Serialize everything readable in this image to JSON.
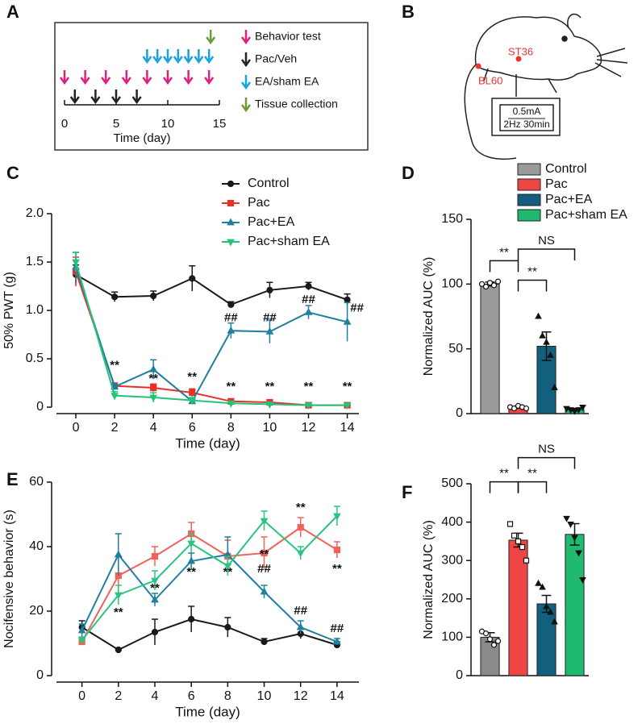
{
  "panel_labels": [
    "A",
    "B",
    "C",
    "D",
    "E",
    "F"
  ],
  "timeline": {
    "xlim": [
      0,
      15
    ],
    "ticks": [
      0,
      5,
      10,
      15
    ],
    "xlabel": "Time (day)",
    "events": [
      {
        "name": "Behavior test",
        "color": "#e0207f",
        "days": [
          0,
          2,
          4,
          6,
          8,
          10,
          12,
          14
        ]
      },
      {
        "name": "Pac/Veh",
        "color": "#222222",
        "days": [
          1,
          3,
          5,
          7
        ]
      },
      {
        "name": "EA/sham EA",
        "color": "#1aa3dd",
        "days": [
          8,
          9,
          10,
          11,
          12,
          13,
          14
        ]
      },
      {
        "name": "Tissue collection",
        "color": "#6f9a3a",
        "days": [
          14
        ]
      }
    ]
  },
  "diagram": {
    "points": [
      "ST36",
      "BL60"
    ],
    "stimulator": [
      "0.5mA",
      "2Hz 30min"
    ]
  },
  "chart_data": [
    {
      "type": "line",
      "ylabel": "50% PWT (g)",
      "xlabel": "Time (day)",
      "x": [
        0,
        2,
        4,
        6,
        8,
        10,
        12,
        14
      ],
      "xlim": [
        -1,
        14.6
      ],
      "xticks": [
        0,
        2,
        4,
        6,
        8,
        10,
        12,
        14
      ],
      "ylim": [
        0,
        2
      ],
      "yticks": [
        0,
        0.5,
        {
          "value": 1,
          "label": "1.0"
        },
        1.5,
        {
          "value": 2,
          "label": "2.0"
        }
      ],
      "series": [
        {
          "name": "Control",
          "color": "#1a1a1a",
          "marker": "circle",
          "values": [
            1.37,
            1.14,
            1.15,
            1.33,
            1.06,
            1.21,
            1.25,
            1.11
          ],
          "errors": [
            0.1,
            0.05,
            0.05,
            0.13,
            0.03,
            0.08,
            0.04,
            0.06
          ]
        },
        {
          "name": "Pac",
          "color": "#e8302a",
          "marker": "square",
          "values": [
            1.4,
            0.22,
            0.2,
            0.15,
            0.06,
            0.05,
            0.02,
            0.02
          ],
          "errors": [
            0.15,
            0.03,
            0.04,
            0.04,
            0.01,
            0.01,
            0.01,
            0.01
          ]
        },
        {
          "name": "Pac+EA",
          "color": "#1f7fa0",
          "marker": "triangle",
          "values": [
            1.45,
            0.21,
            0.39,
            0.06,
            0.79,
            0.78,
            0.98,
            0.88
          ],
          "errors": [
            0.15,
            0.03,
            0.1,
            0.02,
            0.08,
            0.12,
            0.07,
            0.2
          ]
        },
        {
          "name": "Pac+sham EA",
          "color": "#22c47a",
          "marker": "triangle-down",
          "values": [
            1.5,
            0.12,
            0.1,
            0.07,
            0.04,
            0.03,
            0.02,
            0.02
          ],
          "errors": [
            0.1,
            0.04,
            0.05,
            0.03,
            0.01,
            0.01,
            0.01,
            0.01
          ]
        }
      ],
      "annotations": [
        {
          "text": "**",
          "x": 2,
          "y": 0.43
        },
        {
          "text": "**",
          "x": 4,
          "y": 0.29
        },
        {
          "text": "**",
          "x": 6,
          "y": 0.31
        },
        {
          "text": "**",
          "x": 8,
          "y": 0.21
        },
        {
          "text": "**",
          "x": 10,
          "y": 0.21
        },
        {
          "text": "**",
          "x": 12,
          "y": 0.21
        },
        {
          "text": "**",
          "x": 14,
          "y": 0.21
        },
        {
          "text": "##",
          "x": 8,
          "y": 0.92
        },
        {
          "text": "##",
          "x": 10,
          "y": 0.92
        },
        {
          "text": "##",
          "x": 12,
          "y": 1.11
        },
        {
          "text": "##",
          "x": 14.5,
          "y": 1.02
        }
      ]
    },
    {
      "type": "bar",
      "ylabel": "Normalized AUC (%)",
      "ylim": [
        0,
        150
      ],
      "yticks": [
        0,
        50,
        100,
        150
      ],
      "series": [
        {
          "name": "Control",
          "color": "#9a9a9a",
          "point_marker": "circle-open",
          "values": [
            100
          ],
          "errors": [
            1.5
          ],
          "points": [
            100,
            98,
            101,
            99,
            102
          ]
        },
        {
          "name": "Pac",
          "color": "#f04545",
          "point_marker": "circle-open",
          "values": [
            5
          ],
          "errors": [
            0.8
          ],
          "points": [
            5,
            4,
            6,
            5,
            4
          ]
        },
        {
          "name": "Pac+EA",
          "color": "#13607e",
          "point_marker": "triangle",
          "values": [
            52
          ],
          "errors": [
            11
          ],
          "points": [
            75,
            60,
            55,
            45,
            20
          ]
        },
        {
          "name": "Pac+sham EA",
          "color": "#1fba6e",
          "point_marker": "triangle-down",
          "values": [
            3
          ],
          "errors": [
            1
          ],
          "points": [
            4,
            3,
            2,
            3,
            5
          ]
        }
      ],
      "brackets": [
        {
          "from": 0,
          "to": 1,
          "y": 118,
          "text": "**"
        },
        {
          "from": 1,
          "to": 2,
          "y": 103,
          "text": "**"
        },
        {
          "from": 1,
          "to": 3,
          "y": 127,
          "text": "NS"
        }
      ]
    },
    {
      "type": "line",
      "ylabel": "Nocifensive behavior (s)",
      "xlabel": "Time (day)",
      "x": [
        0,
        2,
        4,
        6,
        8,
        10,
        12,
        14
      ],
      "xlim": [
        -1.4,
        15.2
      ],
      "xticks": [
        0,
        2,
        4,
        6,
        8,
        10,
        12,
        14
      ],
      "ylim": [
        0,
        60
      ],
      "yticks": [
        0,
        20,
        40,
        60
      ],
      "series": [
        {
          "color": "#1a1a1a",
          "marker": "circle",
          "values": [
            15,
            8,
            13.5,
            17.5,
            15,
            10.5,
            13,
            9.5
          ],
          "errors": [
            2,
            0.5,
            4,
            4,
            3,
            1,
            1.5,
            1
          ]
        },
        {
          "color": "#f0625a",
          "marker": "square",
          "values": [
            10.5,
            31,
            37,
            44,
            37,
            38,
            46,
            39
          ],
          "errors": [
            1,
            6,
            3,
            3.5,
            5,
            5,
            3,
            2.5
          ]
        },
        {
          "color": "#1f7fa0",
          "marker": "triangle",
          "values": [
            14,
            37.5,
            23.5,
            35.5,
            37.5,
            26,
            15,
            10.5
          ],
          "errors": [
            2,
            6.5,
            2,
            2.5,
            5.5,
            2,
            2,
            1
          ]
        },
        {
          "color": "#2cc483",
          "marker": "triangle-down",
          "values": [
            11,
            25,
            29.5,
            41,
            34,
            48,
            38,
            49.5
          ],
          "errors": [
            1,
            3,
            3,
            3,
            3,
            3,
            2,
            3
          ]
        }
      ],
      "annotations": [
        {
          "text": "**",
          "x": 2,
          "y": 19.5
        },
        {
          "text": "**",
          "x": 4,
          "y": 27
        },
        {
          "text": "**",
          "x": 6,
          "y": 32
        },
        {
          "text": "**",
          "x": 8,
          "y": 32
        },
        {
          "text": "**",
          "x": 10,
          "y": 37.5
        },
        {
          "text": "##",
          "x": 10,
          "y": 33
        },
        {
          "text": "**",
          "x": 12,
          "y": 52
        },
        {
          "text": "##",
          "x": 12,
          "y": 20
        },
        {
          "text": "**",
          "x": 14,
          "y": 33
        },
        {
          "text": "##",
          "x": 14,
          "y": 14.5
        }
      ]
    },
    {
      "type": "bar",
      "ylabel": "Normalized AUC (%)",
      "ylim": [
        0,
        500
      ],
      "yticks": [
        0,
        100,
        200,
        300,
        400,
        500
      ],
      "series": [
        {
          "color": "#8a8a8a",
          "point_marker": "circle-open",
          "values": [
            100
          ],
          "errors": [
            12
          ],
          "points": [
            115,
            110,
            95,
            80,
            90
          ]
        },
        {
          "color": "#f04545",
          "point_marker": "square-open",
          "values": [
            353
          ],
          "errors": [
            18
          ],
          "points": [
            395,
            365,
            350,
            335,
            300
          ]
        },
        {
          "color": "#13607e",
          "point_marker": "triangle",
          "values": [
            187
          ],
          "errors": [
            22
          ],
          "points": [
            240,
            230,
            180,
            165,
            140
          ]
        },
        {
          "color": "#1fba6e",
          "point_marker": "triangle-down",
          "values": [
            368
          ],
          "errors": [
            28
          ],
          "points": [
            410,
            395,
            360,
            320,
            250
          ]
        }
      ],
      "brackets": [
        {
          "from": 0,
          "to": 1,
          "y": 505,
          "text": "**"
        },
        {
          "from": 1,
          "to": 2,
          "y": 505,
          "text": "**"
        },
        {
          "from": 1,
          "to": 3,
          "y": 568,
          "text": "NS"
        }
      ]
    }
  ]
}
